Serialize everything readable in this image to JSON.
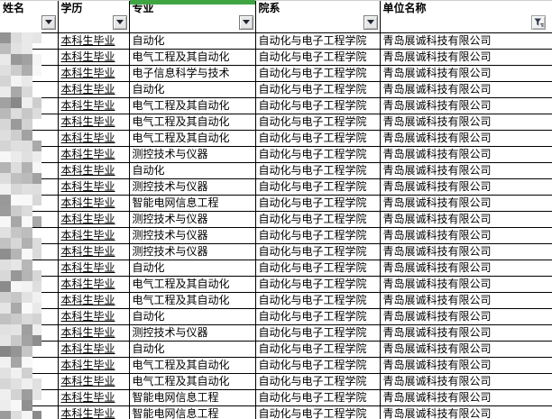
{
  "colors": {
    "accent_green": "#3FA543",
    "grid_border": "#000000",
    "filter_icon_dark": "#2E3A4E",
    "filter_button_face": "#E7E7E7"
  },
  "table": {
    "columns": [
      {
        "id": "name",
        "label": "姓名",
        "filter": "dropdown-arrow"
      },
      {
        "id": "degree",
        "label": "学历",
        "filter": "dropdown-arrow"
      },
      {
        "id": "major",
        "label": "专业",
        "filter": "dropdown-arrow",
        "top_accent": true
      },
      {
        "id": "department",
        "label": "院系",
        "filter": "dropdown-arrow"
      },
      {
        "id": "company",
        "label": "单位名称",
        "filter": "funnel-active"
      }
    ],
    "name_column_redacted": true,
    "rows": [
      {
        "degree": "本科生毕业",
        "major": "自动化",
        "department": "自动化与电子工程学院",
        "company": "青岛展诚科技有限公司"
      },
      {
        "degree": "本科生毕业",
        "major": "电气工程及其自动化",
        "department": "自动化与电子工程学院",
        "company": "青岛展诚科技有限公司"
      },
      {
        "degree": "本科生毕业",
        "major": "电子信息科学与技术",
        "department": "自动化与电子工程学院",
        "company": "青岛展诚科技有限公司"
      },
      {
        "degree": "本科生毕业",
        "major": "自动化",
        "department": "自动化与电子工程学院",
        "company": "青岛展诚科技有限公司"
      },
      {
        "degree": "本科生毕业",
        "major": "电气工程及其自动化",
        "department": "自动化与电子工程学院",
        "company": "青岛展诚科技有限公司"
      },
      {
        "degree": "本科生毕业",
        "major": "电气工程及其自动化",
        "department": "自动化与电子工程学院",
        "company": "青岛展诚科技有限公司"
      },
      {
        "degree": "本科生毕业",
        "major": "电气工程及其自动化",
        "department": "自动化与电子工程学院",
        "company": "青岛展诚科技有限公司"
      },
      {
        "degree": "本科生毕业",
        "major": "测控技术与仪器",
        "department": "自动化与电子工程学院",
        "company": "青岛展诚科技有限公司"
      },
      {
        "degree": "本科生毕业",
        "major": "自动化",
        "department": "自动化与电子工程学院",
        "company": "青岛展诚科技有限公司"
      },
      {
        "degree": "本科生毕业",
        "major": "测控技术与仪器",
        "department": "自动化与电子工程学院",
        "company": "青岛展诚科技有限公司"
      },
      {
        "degree": "本科生毕业",
        "major": "智能电网信息工程",
        "department": "自动化与电子工程学院",
        "company": "青岛展诚科技有限公司"
      },
      {
        "degree": "本科生毕业",
        "major": "测控技术与仪器",
        "department": "自动化与电子工程学院",
        "company": "青岛展诚科技有限公司"
      },
      {
        "degree": "本科生毕业",
        "major": "测控技术与仪器",
        "department": "自动化与电子工程学院",
        "company": "青岛展诚科技有限公司"
      },
      {
        "degree": "本科生毕业",
        "major": "测控技术与仪器",
        "department": "自动化与电子工程学院",
        "company": "青岛展诚科技有限公司"
      },
      {
        "degree": "本科生毕业",
        "major": "自动化",
        "department": "自动化与电子工程学院",
        "company": "青岛展诚科技有限公司"
      },
      {
        "degree": "本科生毕业",
        "major": "电气工程及其自动化",
        "department": "自动化与电子工程学院",
        "company": "青岛展诚科技有限公司"
      },
      {
        "degree": "本科生毕业",
        "major": "电气工程及其自动化",
        "department": "自动化与电子工程学院",
        "company": "青岛展诚科技有限公司"
      },
      {
        "degree": "本科生毕业",
        "major": "自动化",
        "department": "自动化与电子工程学院",
        "company": "青岛展诚科技有限公司"
      },
      {
        "degree": "本科生毕业",
        "major": "测控技术与仪器",
        "department": "自动化与电子工程学院",
        "company": "青岛展诚科技有限公司"
      },
      {
        "degree": "本科生毕业",
        "major": "自动化",
        "department": "自动化与电子工程学院",
        "company": "青岛展诚科技有限公司"
      },
      {
        "degree": "本科生毕业",
        "major": "电气工程及其自动化",
        "department": "自动化与电子工程学院",
        "company": "青岛展诚科技有限公司"
      },
      {
        "degree": "本科生毕业",
        "major": "电气工程及其自动化",
        "department": "自动化与电子工程学院",
        "company": "青岛展诚科技有限公司"
      },
      {
        "degree": "本科生毕业",
        "major": "智能电网信息工程",
        "department": "自动化与电子工程学院",
        "company": "青岛展诚科技有限公司"
      },
      {
        "degree": "本科生毕业",
        "major": "智能电网信息工程",
        "department": "自动化与电子工程学院",
        "company": "青岛展诚科技有限公司"
      }
    ]
  }
}
